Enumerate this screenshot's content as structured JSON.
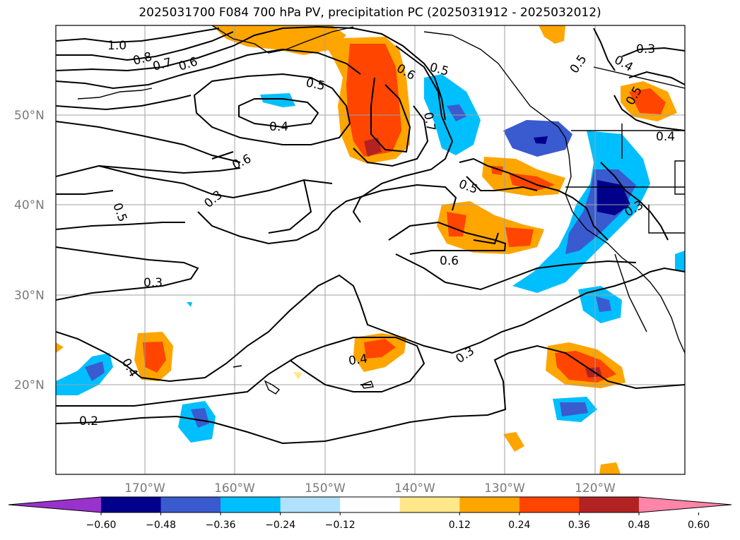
{
  "title": "2025031700 F084 700 hPa PV, precipitation PC (2025031912 - 2025032012)",
  "lat_labels": [
    "50°N",
    "40°N",
    "30°N",
    "20°N"
  ],
  "lon_labels": [
    "170°W",
    "160°W",
    "150°W",
    "140°W",
    "130°W",
    "120°W"
  ],
  "colorbar": {
    "ticks": [
      "−0.60",
      "−0.48",
      "−0.36",
      "−0.24",
      "−0.12",
      "0.12",
      "0.24",
      "0.36",
      "0.48",
      "0.60"
    ],
    "colors": [
      "#9932cc",
      "#00008b",
      "#3a5bcf",
      "#00bfff",
      "#b0e2ff",
      "#ffffff",
      "#ffe78a",
      "#ffa500",
      "#ff4500",
      "#b22222",
      "#ff85aa"
    ]
  },
  "contour_labels": [
    {
      "text": "1.0"
    },
    {
      "text": "0.8"
    },
    {
      "text": "0.7"
    },
    {
      "text": "0.6"
    },
    {
      "text": "0.5"
    },
    {
      "text": "0.4"
    },
    {
      "text": "0.6"
    },
    {
      "text": "0.3"
    },
    {
      "text": "0.5"
    },
    {
      "text": "0.3"
    },
    {
      "text": "0.4"
    },
    {
      "text": "0.2"
    },
    {
      "text": "0.4"
    },
    {
      "text": "0.3"
    },
    {
      "text": "0.6"
    },
    {
      "text": "0.5"
    },
    {
      "text": "0.6"
    },
    {
      "text": "0.5"
    },
    {
      "text": "0.7"
    },
    {
      "text": "0.5"
    },
    {
      "text": "0.4"
    },
    {
      "text": "0.3"
    },
    {
      "text": "0.5"
    },
    {
      "text": "0.4"
    },
    {
      "text": "0.3"
    }
  ]
}
